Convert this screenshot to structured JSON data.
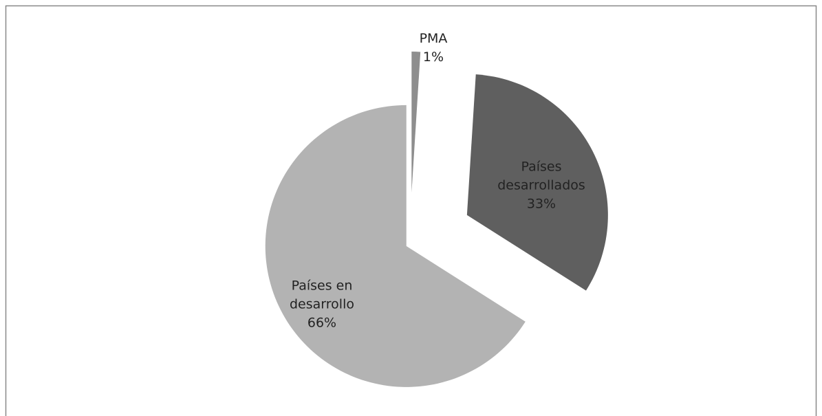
{
  "chart_data": {
    "type": "pie",
    "categories": [
      "PMA",
      "Países desarrollados",
      "Países en desarrollo"
    ],
    "values": [
      1,
      33,
      66
    ],
    "value_labels": [
      "1%",
      "33%",
      "66%"
    ],
    "colors": [
      "#8e8e8e",
      "#5f5f5f",
      "#b3b3b3"
    ]
  }
}
